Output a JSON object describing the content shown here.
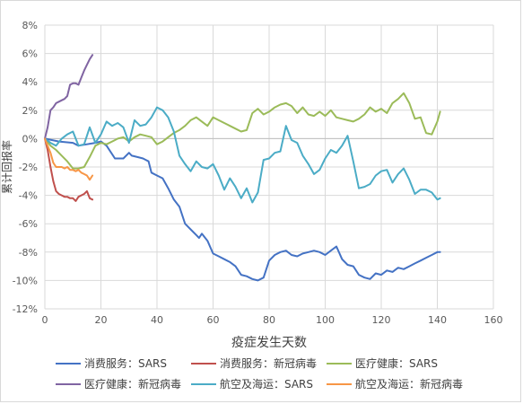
{
  "chart_data": {
    "type": "line",
    "title": "",
    "xlabel": "疫症发生天数",
    "ylabel": "累计回报率",
    "xlim": [
      0,
      160
    ],
    "ylim": [
      -12,
      8
    ],
    "x_ticks": [
      "0",
      "20",
      "40",
      "60",
      "80",
      "100",
      "120",
      "140",
      "160"
    ],
    "y_ticks": [
      "-12%",
      "-10%",
      "-8%",
      "-6%",
      "-4%",
      "-2%",
      "0%",
      "2%",
      "4%",
      "6%",
      "8%"
    ],
    "grid": true,
    "legend_position": "bottom",
    "series": [
      {
        "name": "消费服务：SARS",
        "color": "#4472c4",
        "x": [
          0,
          5,
          10,
          12,
          15,
          18,
          20,
          22,
          25,
          28,
          30,
          31,
          33,
          35,
          36,
          37,
          38,
          40,
          42,
          44,
          46,
          48,
          50,
          52,
          54,
          55,
          56,
          58,
          60,
          62,
          64,
          66,
          68,
          70,
          72,
          74,
          76,
          78,
          80,
          82,
          84,
          86,
          88,
          90,
          92,
          94,
          96,
          98,
          100,
          102,
          104,
          106,
          108,
          110,
          112,
          114,
          116,
          118,
          120,
          122,
          124,
          126,
          128,
          130,
          132,
          134,
          136,
          138,
          140,
          141
        ],
        "y": [
          0,
          -0.2,
          -0.3,
          -0.5,
          -0.4,
          -0.3,
          -0.2,
          -0.5,
          -1.4,
          -1.4,
          -1.0,
          -1.2,
          -1.3,
          -1.4,
          -1.5,
          -1.6,
          -2.4,
          -2.6,
          -2.8,
          -3.5,
          -4.3,
          -4.8,
          -6.0,
          -6.4,
          -6.8,
          -7.0,
          -6.7,
          -7.2,
          -8.1,
          -8.3,
          -8.5,
          -8.7,
          -9.0,
          -9.6,
          -9.7,
          -9.9,
          -10.0,
          -9.8,
          -8.6,
          -8.2,
          -8.0,
          -7.9,
          -8.2,
          -8.3,
          -8.1,
          -8.0,
          -7.9,
          -8.0,
          -8.2,
          -7.9,
          -7.6,
          -8.5,
          -8.9,
          -9.0,
          -9.6,
          -9.8,
          -9.9,
          -9.5,
          -9.6,
          -9.3,
          -9.4,
          -9.1,
          -9.2,
          -9.0,
          -8.8,
          -8.6,
          -8.4,
          -8.2,
          -8.0,
          -8.0
        ]
      },
      {
        "name": "消费服务：新冠病毒",
        "color": "#c0504d",
        "x": [
          0,
          1,
          2,
          3,
          4,
          5,
          6,
          7,
          8,
          9,
          10,
          11,
          12,
          13,
          14,
          15,
          16,
          17
        ],
        "y": [
          0,
          -0.8,
          -2.0,
          -3.0,
          -3.7,
          -3.9,
          -4.0,
          -4.1,
          -4.1,
          -4.2,
          -4.2,
          -4.4,
          -4.1,
          -4.0,
          -3.9,
          -3.7,
          -4.2,
          -4.3
        ]
      },
      {
        "name": "医疗健康：SARS",
        "color": "#9bbb59",
        "x": [
          0,
          2,
          4,
          6,
          8,
          10,
          12,
          14,
          16,
          18,
          20,
          22,
          24,
          26,
          28,
          30,
          32,
          34,
          36,
          38,
          40,
          42,
          44,
          46,
          48,
          50,
          52,
          54,
          56,
          58,
          60,
          62,
          64,
          66,
          68,
          70,
          72,
          74,
          76,
          78,
          80,
          82,
          84,
          86,
          88,
          90,
          92,
          94,
          96,
          98,
          100,
          102,
          104,
          106,
          108,
          110,
          112,
          114,
          116,
          118,
          120,
          122,
          124,
          126,
          128,
          130,
          132,
          134,
          136,
          138,
          140,
          141
        ],
        "y": [
          0,
          -0.5,
          -0.8,
          -1.2,
          -1.6,
          -2.1,
          -2.1,
          -2.0,
          -1.3,
          -0.5,
          -0.3,
          -0.4,
          -0.2,
          0.0,
          0.1,
          -0.2,
          0.1,
          0.3,
          0.2,
          0.1,
          -0.4,
          -0.2,
          0.1,
          0.4,
          0.6,
          0.9,
          1.3,
          1.5,
          1.2,
          0.9,
          1.5,
          1.3,
          1.1,
          0.9,
          0.7,
          0.5,
          0.6,
          1.8,
          2.1,
          1.7,
          1.9,
          2.2,
          2.4,
          2.5,
          2.3,
          1.8,
          2.2,
          1.7,
          1.6,
          1.9,
          1.6,
          2.0,
          1.5,
          1.4,
          1.3,
          1.2,
          1.4,
          1.7,
          2.2,
          1.9,
          2.1,
          1.8,
          2.5,
          2.8,
          3.2,
          2.5,
          1.4,
          1.5,
          0.4,
          0.3,
          1.2,
          1.9
        ]
      },
      {
        "name": "医疗健康：新冠病毒",
        "color": "#8064a2",
        "x": [
          0,
          1,
          2,
          3,
          4,
          5,
          6,
          7,
          8,
          9,
          10,
          11,
          12,
          13,
          14,
          15,
          16,
          17
        ],
        "y": [
          0,
          0.8,
          2.0,
          2.2,
          2.5,
          2.6,
          2.7,
          2.8,
          3.0,
          3.8,
          3.9,
          3.9,
          3.8,
          4.3,
          4.8,
          5.2,
          5.6,
          5.9
        ]
      },
      {
        "name": "航空及海运：SARS",
        "color": "#4bacc6",
        "x": [
          0,
          2,
          4,
          6,
          8,
          10,
          12,
          14,
          16,
          18,
          20,
          22,
          24,
          26,
          28,
          30,
          32,
          34,
          36,
          38,
          40,
          42,
          44,
          46,
          48,
          50,
          52,
          54,
          56,
          58,
          60,
          62,
          64,
          66,
          68,
          70,
          72,
          74,
          76,
          78,
          80,
          82,
          84,
          86,
          88,
          90,
          92,
          94,
          96,
          98,
          100,
          102,
          104,
          106,
          108,
          110,
          112,
          114,
          116,
          118,
          120,
          122,
          124,
          126,
          128,
          130,
          132,
          134,
          136,
          138,
          140,
          141
        ],
        "y": [
          0,
          -0.3,
          -0.5,
          0.0,
          0.3,
          0.5,
          -0.5,
          -0.4,
          0.8,
          -0.3,
          0.3,
          1.2,
          0.9,
          1.1,
          0.8,
          -0.3,
          1.3,
          0.9,
          1.0,
          1.5,
          2.2,
          2.0,
          1.5,
          0.5,
          -1.2,
          -1.8,
          -2.3,
          -1.6,
          -2.0,
          -2.1,
          -1.8,
          -2.6,
          -3.6,
          -2.8,
          -3.4,
          -4.2,
          -3.5,
          -4.5,
          -3.8,
          -1.5,
          -1.4,
          -1.0,
          -0.9,
          0.9,
          -0.1,
          -0.3,
          -1.2,
          -1.8,
          -2.5,
          -2.2,
          -1.4,
          -0.8,
          -1.0,
          -0.5,
          0.2,
          -1.6,
          -3.5,
          -3.4,
          -3.2,
          -2.6,
          -2.3,
          -2.2,
          -3.1,
          -2.5,
          -2.1,
          -2.9,
          -3.9,
          -3.6,
          -3.6,
          -3.8,
          -4.3,
          -4.2
        ]
      },
      {
        "name": "航空及海运：新冠病毒",
        "color": "#f79646",
        "x": [
          0,
          1,
          2,
          3,
          4,
          5,
          6,
          7,
          8,
          9,
          10,
          11,
          12,
          13,
          14,
          15,
          16,
          17
        ],
        "y": [
          0,
          -0.5,
          -1.0,
          -1.7,
          -2.0,
          -2.0,
          -2.0,
          -2.1,
          -2.0,
          -2.2,
          -2.2,
          -2.3,
          -2.2,
          -2.4,
          -2.5,
          -2.6,
          -2.9,
          -2.6
        ]
      }
    ]
  }
}
